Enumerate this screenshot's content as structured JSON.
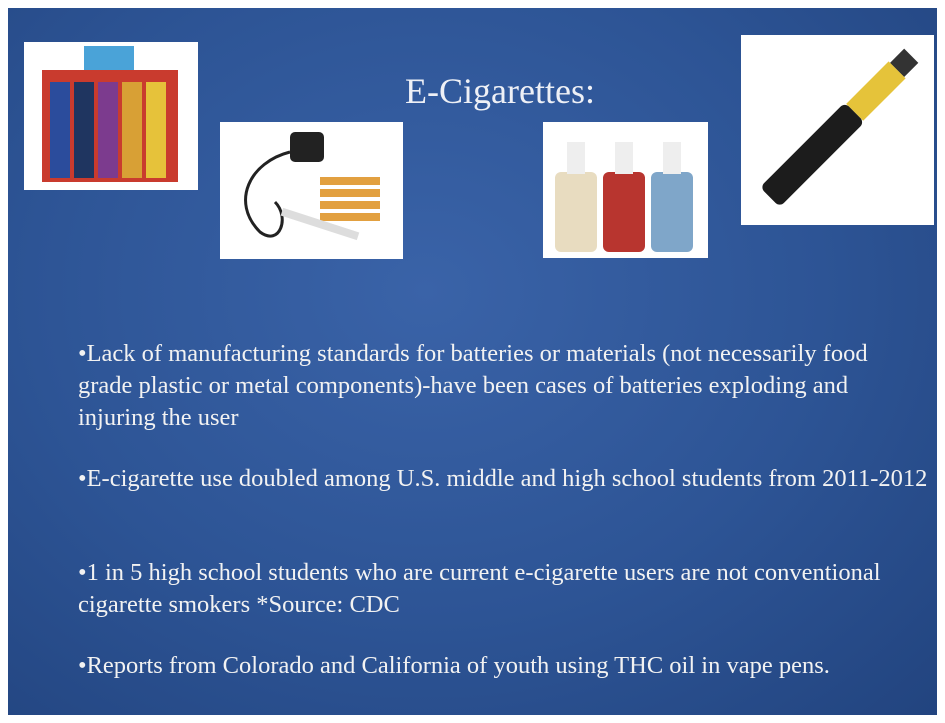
{
  "slide": {
    "title": "E-Cigarettes:",
    "bullets": [
      "•Lack of manufacturing standards for batteries or materials (not necessarily food grade plastic or metal components)-have been cases of batteries exploding and injuring the user",
      "•E-cigarette use doubled among U.S. middle and high school students from 2011-2012",
      "•1 in 5 high school students who are current e-cigarette users are not conventional cigarette smokers *Source: CDC",
      "•Reports from Colorado and California of youth using THC oil in vape pens."
    ]
  }
}
